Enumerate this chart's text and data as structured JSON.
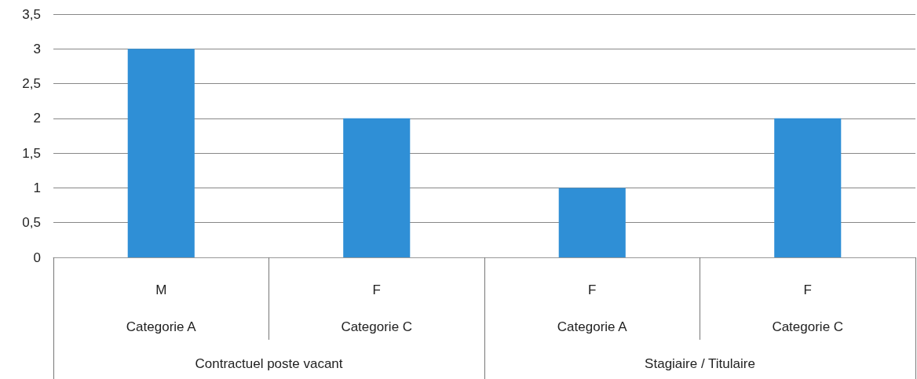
{
  "chart_data": {
    "type": "bar",
    "categories": [
      "M\nCategorie A",
      "F\nCategorie C",
      "F\nCategorie A",
      "F\nCategorie C"
    ],
    "values": [
      3,
      2,
      1,
      2
    ],
    "color": "#2f8fd6",
    "ylim": [
      0,
      3.5
    ],
    "yticks": [
      0,
      {
        "value": 0.5,
        "label": "0,5"
      },
      1,
      {
        "value": 1.5,
        "label": "1,5"
      },
      2,
      {
        "value": 2.5,
        "label": "2,5"
      },
      3,
      {
        "value": 3.5,
        "label": "3,5"
      }
    ],
    "grid": true,
    "annotations": [
      "Contractuel poste vacant",
      "Stagiaire / Titulaire"
    ]
  }
}
